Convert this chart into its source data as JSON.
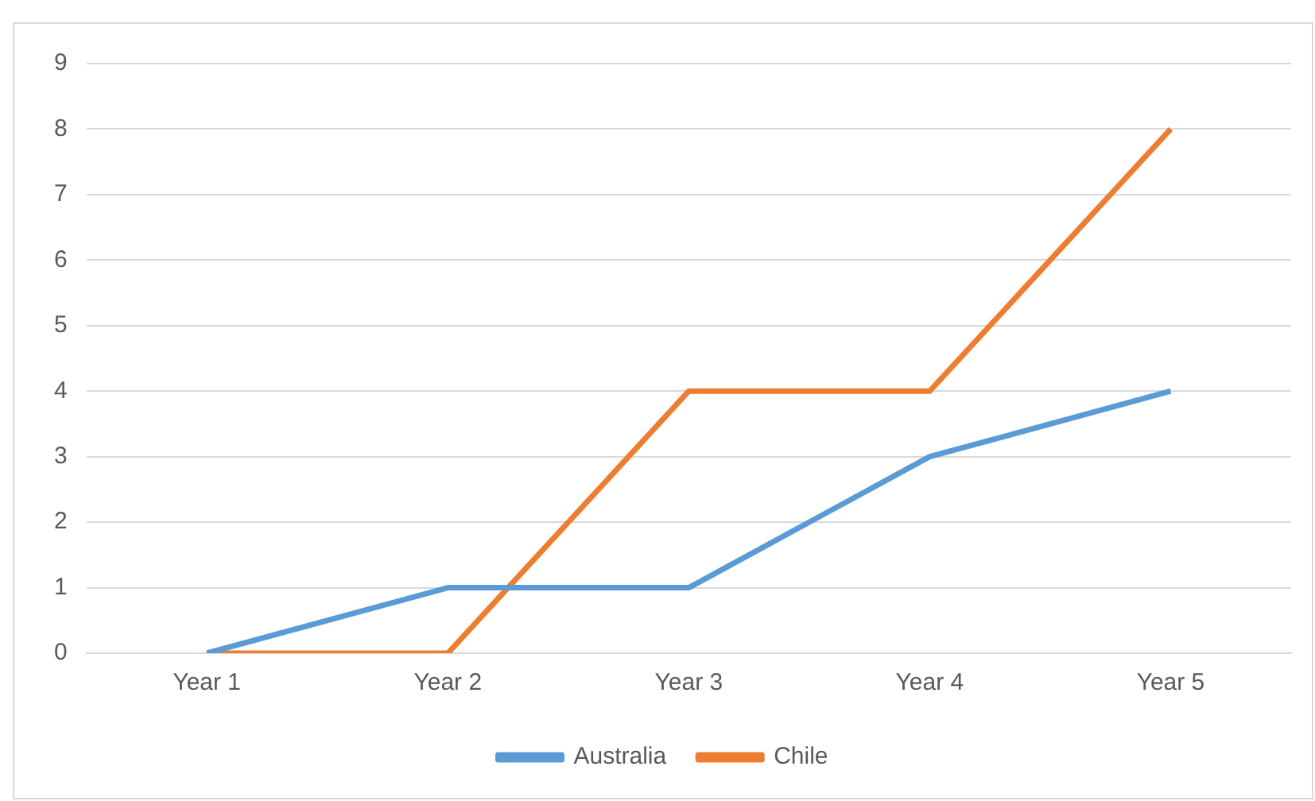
{
  "chart_data": {
    "type": "line",
    "categories": [
      "Year 1",
      "Year 2",
      "Year 3",
      "Year 4",
      "Year 5"
    ],
    "series": [
      {
        "name": "Australia",
        "color": "#5b9bd5",
        "values": [
          0,
          1,
          1,
          3,
          4
        ]
      },
      {
        "name": "Chile",
        "color": "#ed7d31",
        "values": [
          0,
          0,
          4,
          4,
          8
        ]
      }
    ],
    "ylim": [
      0,
      9
    ],
    "yticks": [
      0,
      1,
      2,
      3,
      4,
      5,
      6,
      7,
      8,
      9
    ],
    "grid": "y",
    "legend": "bottom",
    "marker": "none",
    "line_style": "solid"
  }
}
